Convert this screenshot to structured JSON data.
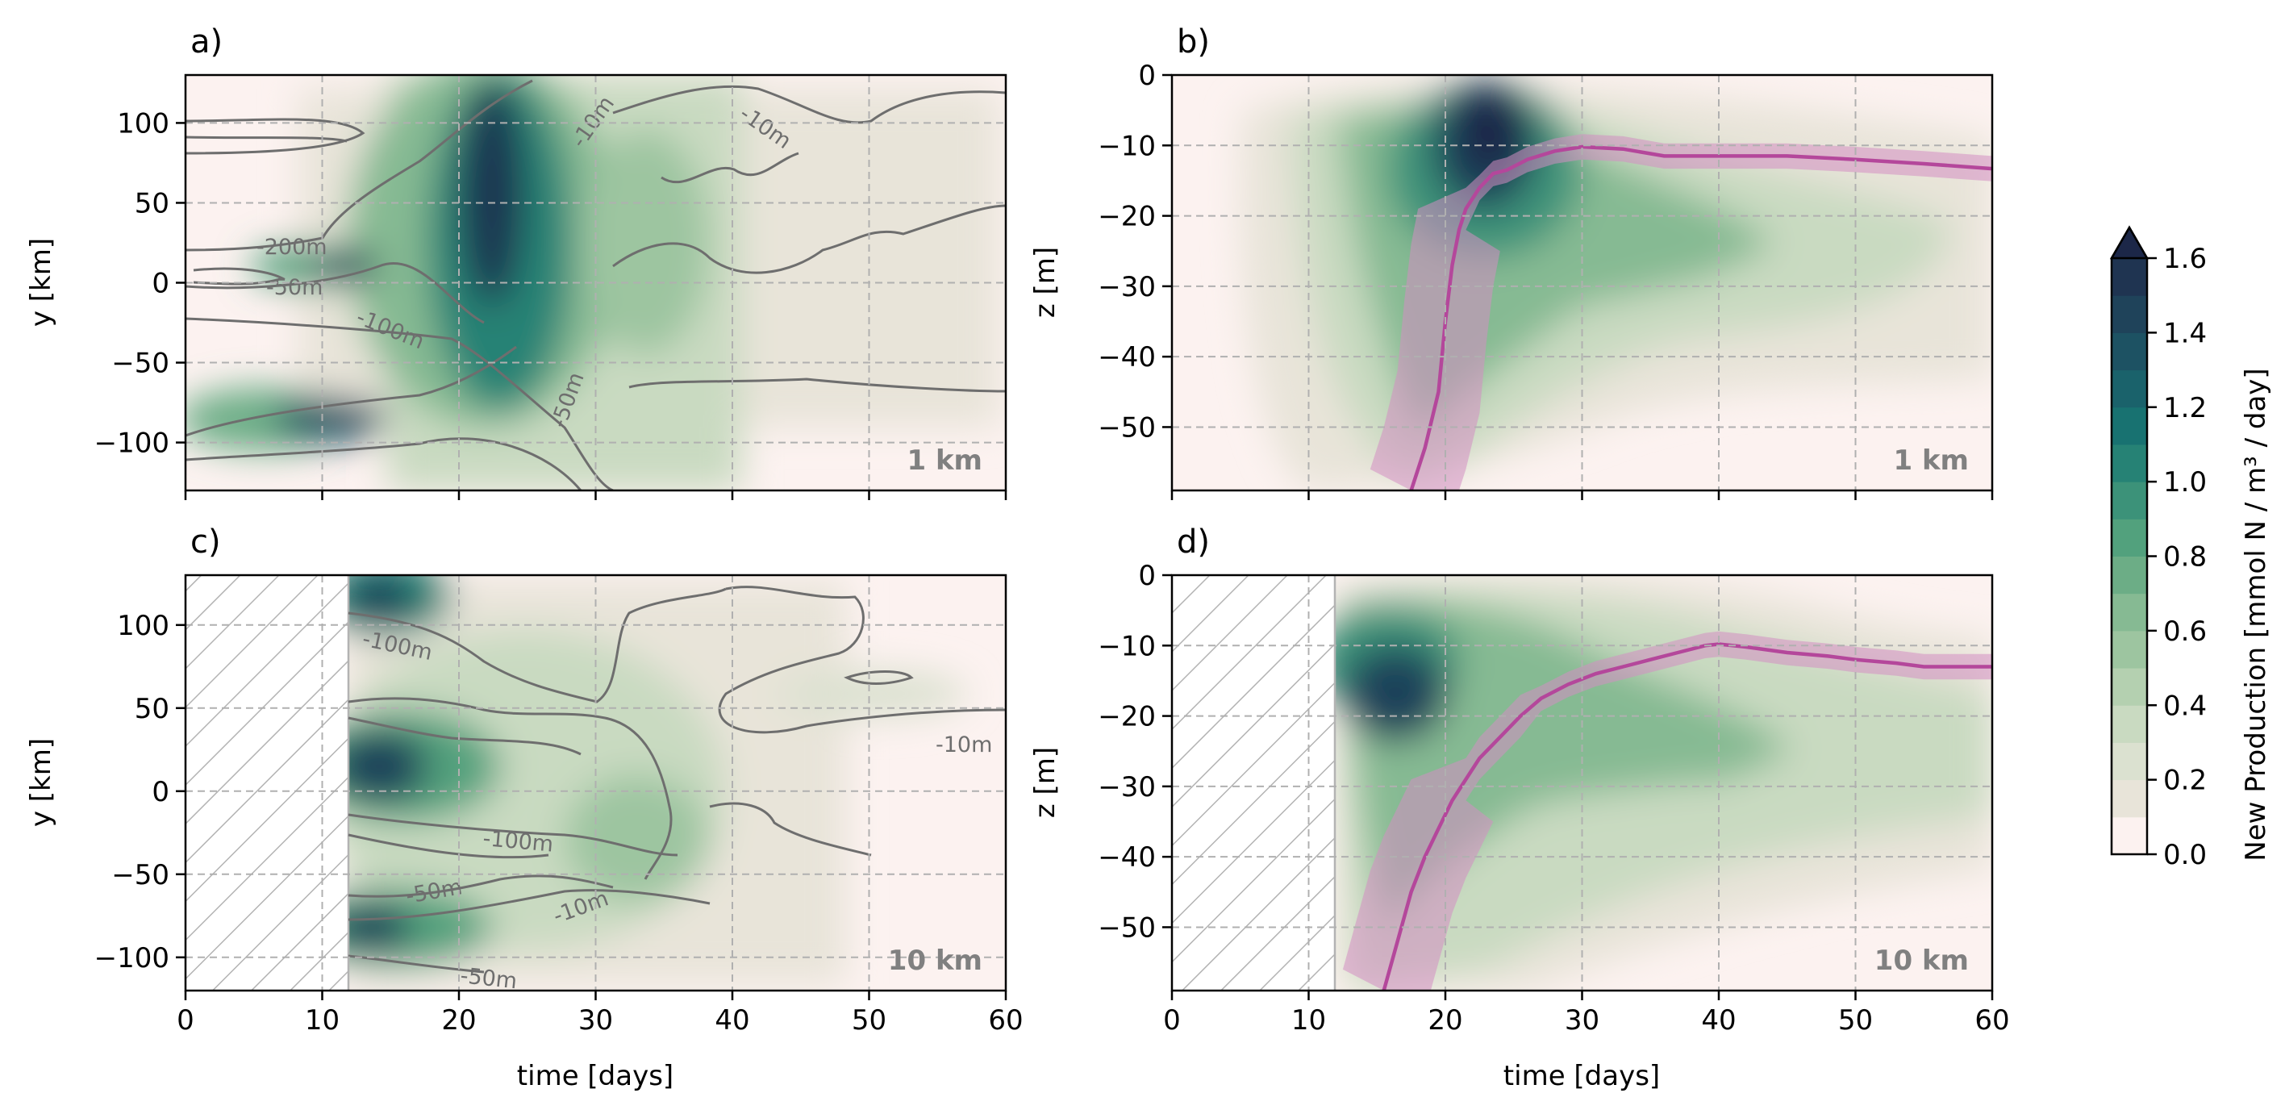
{
  "chart_data": [
    {
      "id": "a",
      "type": "heatmap",
      "panel_label": "a)",
      "xlabel": "",
      "ylabel": "y [km]",
      "xlim": [
        0,
        60
      ],
      "ylim": [
        -130,
        130
      ],
      "xticks": [
        0,
        10,
        20,
        30,
        40,
        50,
        60
      ],
      "yticks": [
        -100,
        -50,
        0,
        50,
        100
      ],
      "resolution_label": "1 km",
      "hatched_x_range": null,
      "contour_labels": [
        {
          "text": "-200m",
          "x": 8,
          "y": 20
        },
        {
          "text": "-50m",
          "x": 8,
          "y": -4
        },
        {
          "text": "-100m",
          "x": 15,
          "y": -28
        },
        {
          "text": "-50m",
          "x": 29,
          "y": -75
        },
        {
          "text": "-10m",
          "x": 30,
          "y": 100
        },
        {
          "text": "-10m",
          "x": 42,
          "y": 97
        }
      ],
      "np_peak_days": [
        15,
        26
      ],
      "description_series": [
        {
          "name": "contour_lines",
          "values": []
        }
      ]
    },
    {
      "id": "b",
      "type": "heatmap",
      "panel_label": "b)",
      "xlabel": "",
      "ylabel": "z [m]",
      "xlim": [
        0,
        60
      ],
      "ylim": [
        -59,
        0
      ],
      "xticks": [
        0,
        10,
        20,
        30,
        40,
        50,
        60
      ],
      "yticks": [
        -50,
        -40,
        -30,
        -20,
        -10,
        0
      ],
      "resolution_label": "1 km",
      "hatched_x_range": null,
      "mld_line": {
        "x": [
          17.5,
          18.5,
          19.5,
          20.0,
          20.5,
          21.0,
          21.5,
          22.5,
          23.5,
          24.5,
          26,
          28,
          30,
          33,
          36,
          40,
          45,
          50,
          55,
          60
        ],
        "y": [
          -59,
          -53,
          -45,
          -35,
          -27,
          -22,
          -19,
          -16,
          -14,
          -13.5,
          -12,
          -10.8,
          -10.2,
          -10.5,
          -11.5,
          -11.5,
          -11.5,
          -12,
          -12.6,
          -13.3
        ]
      }
    },
    {
      "id": "c",
      "type": "heatmap",
      "panel_label": "c)",
      "xlabel": "time [days]",
      "ylabel": "y [km]",
      "xlim": [
        0,
        60
      ],
      "ylim": [
        -120,
        130
      ],
      "xticks": [
        0,
        10,
        20,
        30,
        40,
        50,
        60
      ],
      "yticks": [
        -100,
        -50,
        0,
        50,
        100
      ],
      "resolution_label": "10 km",
      "hatched_x_range": [
        0,
        12
      ],
      "contour_labels": [
        {
          "text": "-100m",
          "x": 16,
          "y": 88
        },
        {
          "text": "-100m",
          "x": 25,
          "y": -30
        },
        {
          "text": "-50m",
          "x": 18,
          "y": -65
        },
        {
          "text": "-10m",
          "x": 29,
          "y": -72
        },
        {
          "text": "-50m",
          "x": 22,
          "y": -113
        },
        {
          "text": "-10m",
          "x": 57,
          "y": 28
        }
      ]
    },
    {
      "id": "d",
      "type": "heatmap",
      "panel_label": "d)",
      "xlabel": "time [days]",
      "ylabel": "z [m]",
      "xlim": [
        0,
        60
      ],
      "ylim": [
        -59,
        0
      ],
      "xticks": [
        0,
        10,
        20,
        30,
        40,
        50,
        60
      ],
      "yticks": [
        -50,
        -40,
        -30,
        -20,
        -10,
        0
      ],
      "resolution_label": "10 km",
      "hatched_x_range": [
        0,
        12
      ],
      "mld_line": {
        "x": [
          15.5,
          16.5,
          17.5,
          18.5,
          19.5,
          20.5,
          21.5,
          22.5,
          24,
          25.5,
          27,
          29,
          31,
          33,
          35,
          37,
          39,
          40,
          42,
          45,
          48,
          50,
          53,
          55,
          57,
          60
        ],
        "y": [
          -59,
          -52,
          -45,
          -40,
          -36,
          -32,
          -29,
          -26,
          -23,
          -20,
          -17.5,
          -15.5,
          -14,
          -13,
          -12,
          -11,
          -10,
          -9.8,
          -10.2,
          -11,
          -11.5,
          -12,
          -12.5,
          -13,
          -13,
          -13
        ]
      }
    }
  ],
  "colorbar": {
    "label": "New Production [mmol N / m³ / day]",
    "ticks": [
      0.0,
      0.2,
      0.4,
      0.6,
      0.8,
      1.0,
      1.2,
      1.4,
      1.6
    ],
    "tick_labels": [
      "0.0",
      "0.2",
      "0.4",
      "0.6",
      "0.8",
      "1.0",
      "1.2",
      "1.4",
      "1.6"
    ],
    "levels": [
      0.0,
      0.1,
      0.2,
      0.3,
      0.4,
      0.5,
      0.6,
      0.7,
      0.8,
      0.9,
      1.0,
      1.1,
      1.2,
      1.3,
      1.4,
      1.5,
      1.6
    ],
    "colors": [
      "#fcf2f0",
      "#e8e4d9",
      "#dbe1d0",
      "#c9dac1",
      "#b4d0b0",
      "#9dc5a0",
      "#86ba93",
      "#6cad86",
      "#52a17d",
      "#3c9279",
      "#268275",
      "#187271",
      "#1a626b",
      "#1d5263",
      "#1f435a",
      "#1f3451",
      "#1c2748"
    ],
    "extend": "max"
  },
  "line_color": "#b4479b",
  "band_color": "#d38ec2"
}
